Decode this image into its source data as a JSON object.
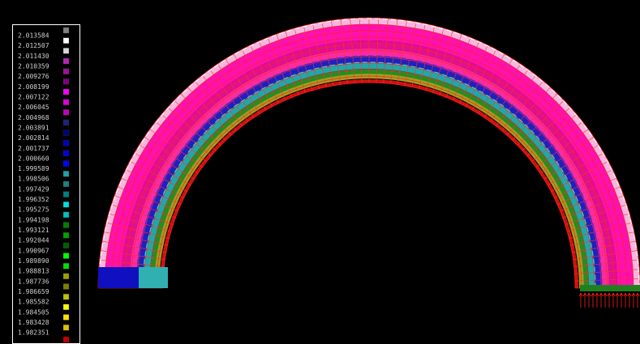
{
  "legend": {
    "items": [
      {
        "label": "2.013584",
        "color": "#808080"
      },
      {
        "label": "2.012507",
        "color": "#ffffff"
      },
      {
        "label": "2.011430",
        "color": "#d8d8d8"
      },
      {
        "label": "2.010359",
        "color": "#c020c0"
      },
      {
        "label": "2.009276",
        "color": "#a0109a"
      },
      {
        "label": "2.008199",
        "color": "#800080"
      },
      {
        "label": "2.007122",
        "color": "#ff00ff"
      },
      {
        "label": "2.006045",
        "color": "#e000e0"
      },
      {
        "label": "2.004968",
        "color": "#c000c0"
      },
      {
        "label": "2.003891",
        "color": "#202080"
      },
      {
        "label": "2.002814",
        "color": "#000080"
      },
      {
        "label": "2.001737",
        "color": "#0000c0"
      },
      {
        "label": "2.000660",
        "color": "#0000e0"
      },
      {
        "label": "1.999589",
        "color": "#0000ff"
      },
      {
        "label": "1.998506",
        "color": "#20a0a0"
      },
      {
        "label": "1.997429",
        "color": "#208080"
      },
      {
        "label": "1.996352",
        "color": "#008080"
      },
      {
        "label": "1.995275",
        "color": "#00e0e0"
      },
      {
        "label": "1.994198",
        "color": "#00c0c0"
      },
      {
        "label": "1.993121",
        "color": "#008000"
      },
      {
        "label": "1.992044",
        "color": "#00a000"
      },
      {
        "label": "1.990967",
        "color": "#006000"
      },
      {
        "label": "1.989890",
        "color": "#00ff00"
      },
      {
        "label": "1.988813",
        "color": "#00e000"
      },
      {
        "label": "1.987736",
        "color": "#a0a000"
      },
      {
        "label": "1.986659",
        "color": "#808000"
      },
      {
        "label": "1.985582",
        "color": "#c0c000"
      },
      {
        "label": "1.984505",
        "color": "#ffff00"
      },
      {
        "label": "1.983428",
        "color": "#ffe000"
      },
      {
        "label": "1.982351",
        "color": "#e0c000"
      }
    ]
  }
}
